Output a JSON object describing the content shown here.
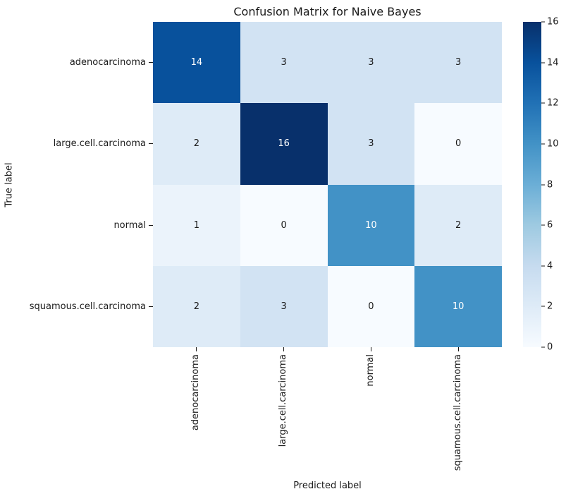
{
  "figure": {
    "background_color": "#ffffff",
    "text_color": "#1a1a1a"
  },
  "chart_data": {
    "type": "heatmap",
    "title": "Confusion Matrix for Naive Bayes",
    "xlabel": "Predicted label",
    "ylabel": "True label",
    "categories": [
      "adenocarcinoma",
      "large.cell.carcinoma",
      "normal",
      "squamous.cell.carcinoma"
    ],
    "matrix": [
      [
        14,
        3,
        3,
        3
      ],
      [
        2,
        16,
        3,
        0
      ],
      [
        1,
        0,
        10,
        2
      ],
      [
        2,
        3,
        0,
        10
      ]
    ],
    "vmin": 0,
    "vmax": 16,
    "colormap": "Blues",
    "colormap_stops": [
      "#f7fbff",
      "#deebf7",
      "#c6dbef",
      "#9ecae1",
      "#6baed6",
      "#4292c6",
      "#2171b5",
      "#08519c",
      "#08306b"
    ],
    "colorbar_ticks": [
      16,
      14,
      12,
      10,
      8,
      6,
      4,
      2,
      0
    ],
    "colorbar_position": "right",
    "grid": false,
    "annot_light_color": "#ffffff",
    "annot_dark_color": "#1a1a1a",
    "light_text_threshold": 8
  }
}
